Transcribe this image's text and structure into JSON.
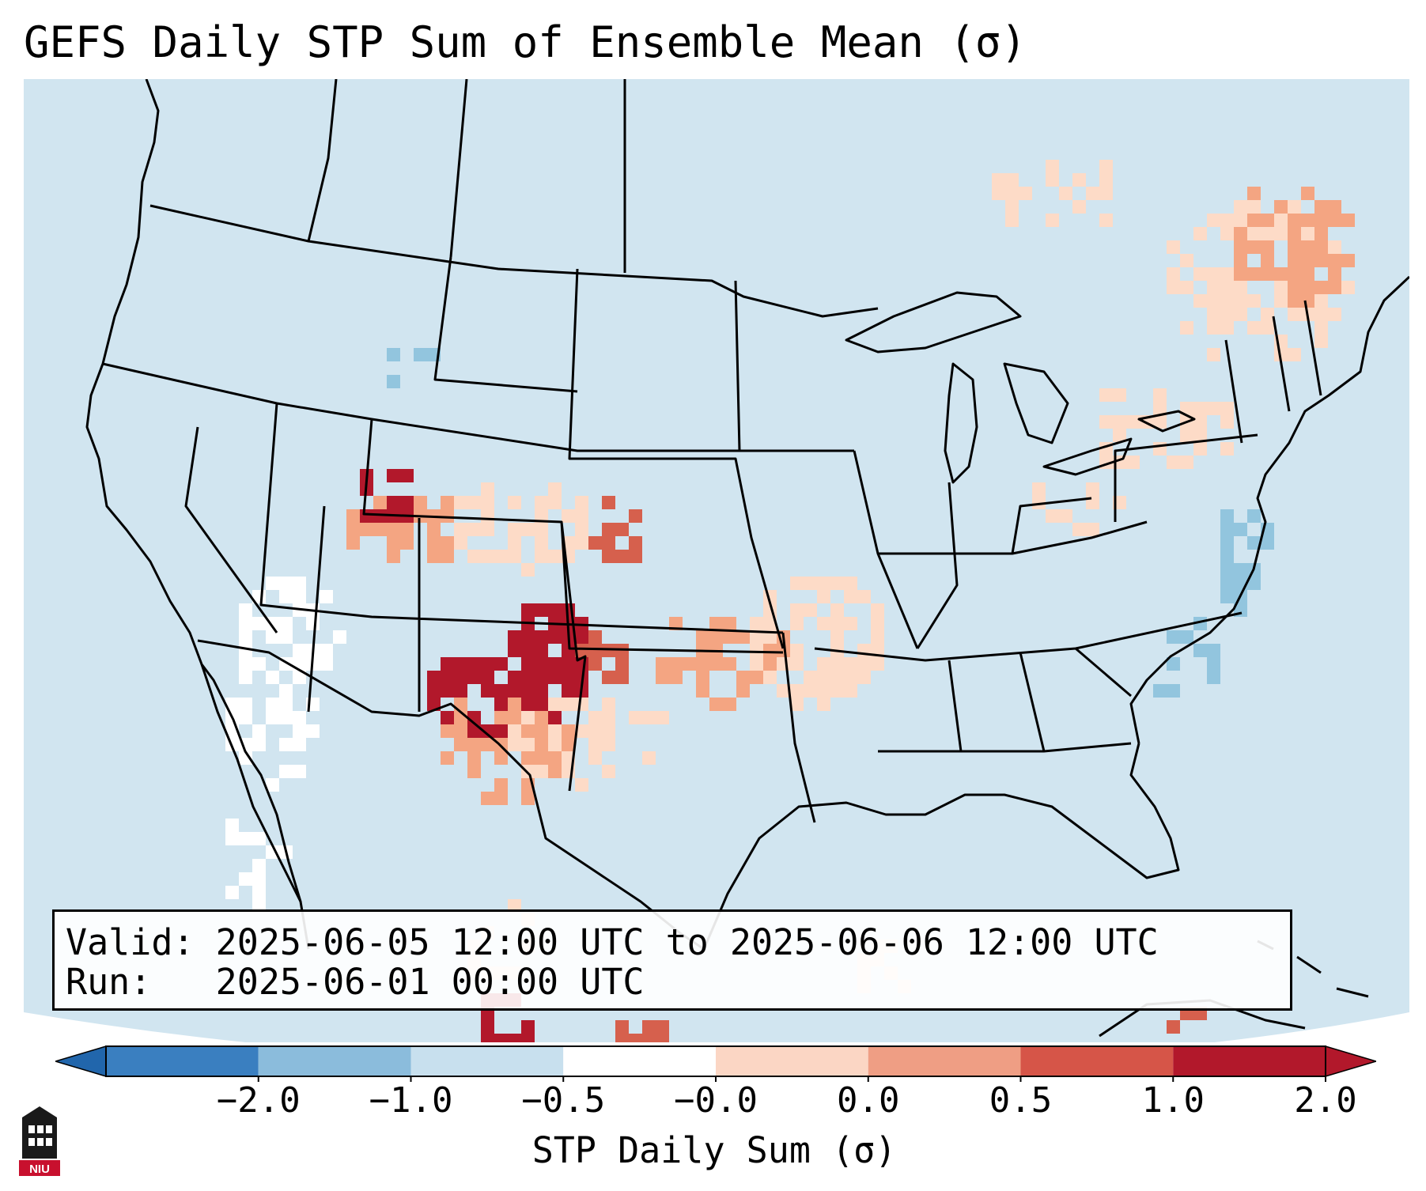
{
  "title": "GEFS Daily STP Sum of Ensemble Mean (σ)",
  "info": {
    "valid_label": "Valid:",
    "valid_value": "2025-06-05 12:00 UTC to 2025-06-06 12:00 UTC",
    "run_label": "Run:",
    "run_value": "2025-06-01 00:00 UTC"
  },
  "colorbar": {
    "label": "STP Daily Sum (σ)",
    "ticks": [
      "−2.0",
      "−1.0",
      "−0.5",
      "−0.0",
      "0.0",
      "0.5",
      "1.0",
      "2.0"
    ],
    "bins": [
      {
        "color": "#3a7fc0"
      },
      {
        "color": "#8bbcdc"
      },
      {
        "color": "#c8e0ee"
      },
      {
        "color": "#ffffff"
      },
      {
        "color": "#fbd6c4"
      },
      {
        "color": "#ef9e84"
      },
      {
        "color": "#d65548"
      },
      {
        "color": "#b2182b"
      }
    ],
    "extend_low_color": "#2166ac",
    "extend_high_color": "#b2182b"
  },
  "map": {
    "background_color": "#d1e5f0",
    "outside_color": "#ffffff",
    "colors": {
      "neutral_white": "#ffffff",
      "light_blue": "#92c5de",
      "light_red": "#fddbc7",
      "mid_red": "#f4a582",
      "strong_red": "#d6604d",
      "dark_red": "#b2182b"
    }
  },
  "logo": {
    "text": "NIU"
  }
}
